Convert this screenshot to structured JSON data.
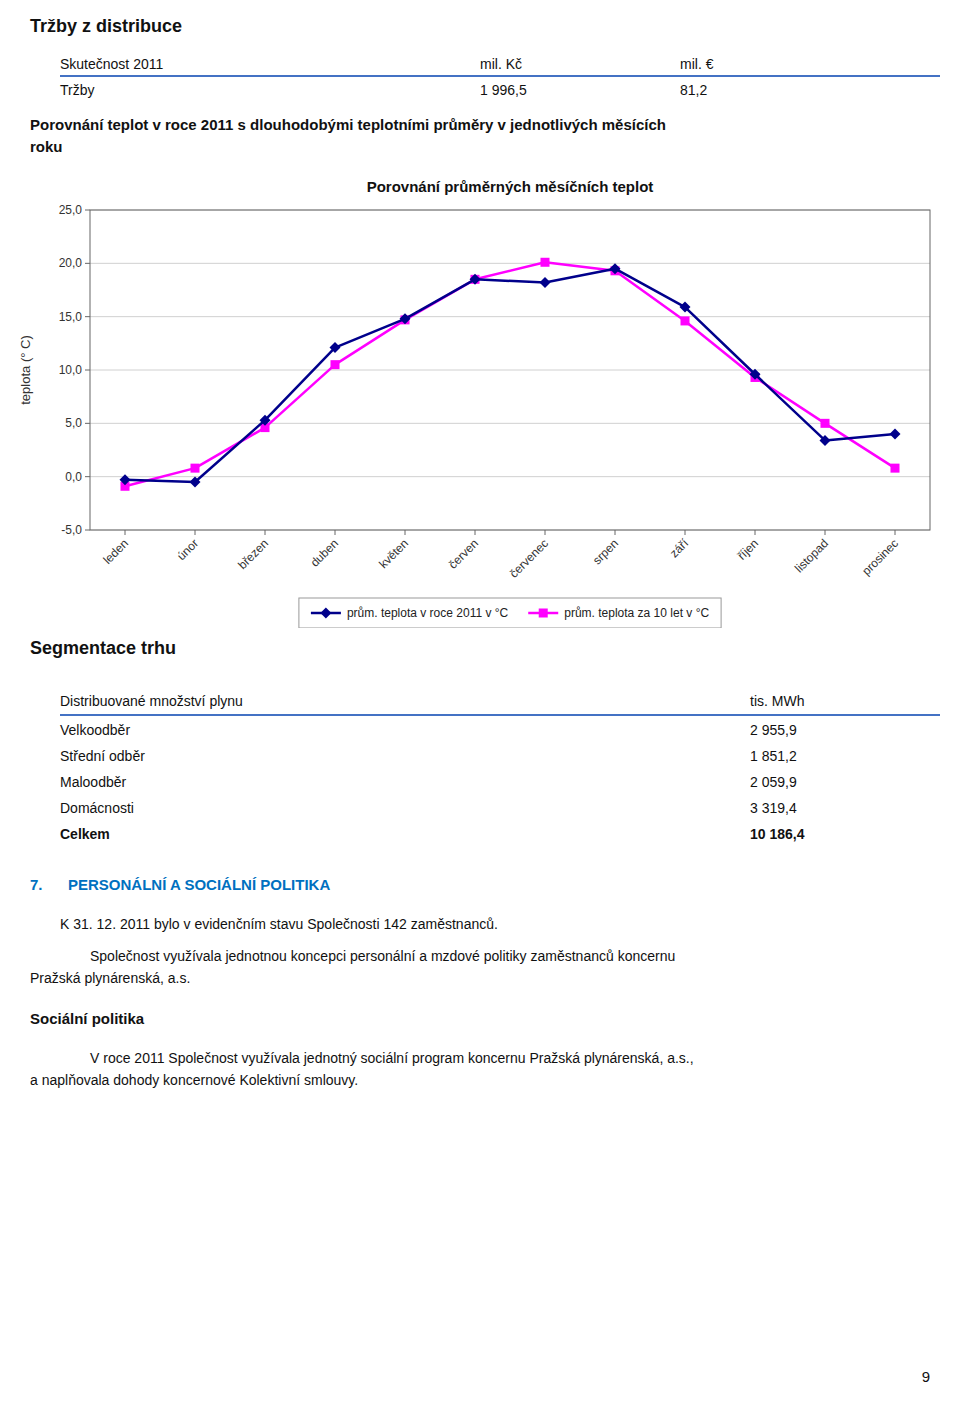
{
  "chart_data": {
    "type": "line",
    "title": "Porovnání průměrných měsíčních teplot",
    "ylabel": "teplota (° C)",
    "categories": [
      "leden",
      "únor",
      "březen",
      "duben",
      "květen",
      "červen",
      "červenec",
      "srpen",
      "září",
      "říjen",
      "listopad",
      "prosinec"
    ],
    "series": [
      {
        "name": "prům. teplota v roce 2011 v °C",
        "color": "#00008B",
        "marker": "diamond",
        "values": [
          -0.3,
          -0.5,
          5.3,
          12.1,
          14.8,
          18.5,
          18.2,
          19.5,
          15.9,
          9.6,
          3.4,
          4.0
        ]
      },
      {
        "name": "prům. teplota za 10 let v °C",
        "color": "#FF00FF",
        "marker": "square",
        "values": [
          -0.9,
          0.8,
          4.6,
          10.5,
          14.7,
          18.5,
          20.1,
          19.3,
          14.6,
          9.3,
          5.0,
          0.8
        ]
      }
    ],
    "ylim": [
      -5.0,
      25.0
    ],
    "yticks": [
      {
        "value": -5.0,
        "label": "-5,0"
      },
      {
        "value": 0.0,
        "label": "0,0"
      },
      {
        "value": 5.0,
        "label": "5,0"
      },
      {
        "value": 10.0,
        "label": "10,0"
      },
      {
        "value": 15.0,
        "label": "15,0"
      },
      {
        "value": 20.0,
        "label": "20,0"
      },
      {
        "value": 25.0,
        "label": "25,0"
      }
    ],
    "grid": true,
    "legend": "bottom"
  },
  "page": {
    "title_main": "Tržby z distribuce",
    "line_color": "#4472C4",
    "table_header": [
      "Skutečnost 2011",
      "mil. Kč",
      "mil. €"
    ],
    "table_row": [
      "Tržby",
      "1 996,5",
      "81,2"
    ],
    "chart_subtitle": [
      "Porovnání teplot v roce 2011 s dlouhodobými teplotními průměry v jednotlivých měsících",
      "roku"
    ],
    "segmentace_title": "Segmentace trhu",
    "dist_header": [
      "Distribuované množství plynu",
      "tis. MWh"
    ],
    "dist_rows": [
      [
        "Velkoodběr",
        "2 955,9"
      ],
      [
        "Střední odběr",
        "1 851,2"
      ],
      [
        "Maloodběr",
        "2 059,9"
      ],
      [
        "Domácnosti",
        "3 319,4"
      ],
      [
        "Celkem",
        "10 186,4"
      ]
    ],
    "section7_num": "7.",
    "section7_heading": "PERSONÁLNÍ A SOCIÁLNÍ POLITIKA",
    "section7_color": "#0070C0",
    "section7_text1": "K 31. 12. 2011 bylo v evidenčním stavu Společnosti 142 zaměstnanců.",
    "section7_text2": [
      "Společnost využívala jednotnou koncepci personální a mzdové politiky zaměstnanců koncernu",
      "Pražská plynárenská, a.s."
    ],
    "social_title": "Sociální politika",
    "social_text": [
      "V roce 2011 Společnost využívala jednotný sociální program koncernu Pražská plynárenská, a.s.,",
      "a naplňovala dohody koncernové Kolektivní smlouvy."
    ],
    "page_number": "9"
  }
}
